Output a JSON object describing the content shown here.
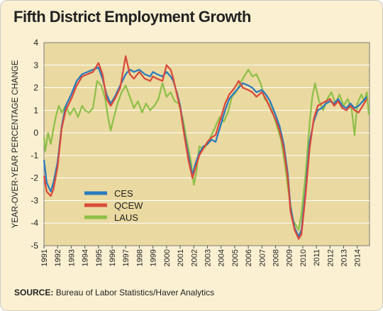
{
  "title": "Fifth District Employment Growth",
  "source": {
    "label": "SOURCE:",
    "text": "Bureau of Labor Statistics/Haver Analytics"
  },
  "chart_data": {
    "type": "line",
    "title": "Fifth District Employment Growth",
    "ylabel": "YEAR-OVER-YEAR PERCENTAGE CHANGE",
    "xlabel": "",
    "xlim": [
      1991,
      2014.9
    ],
    "ylim": [
      -5,
      4
    ],
    "yticks": [
      "4",
      "3",
      "2",
      "1",
      "0",
      "-1",
      "-2",
      "-3",
      "-4",
      "-5"
    ],
    "xticks": [
      "1991",
      "1992",
      "1993",
      "1994",
      "1995",
      "1996",
      "1997",
      "1998",
      "1999",
      "2000",
      "2001",
      "2002",
      "2003",
      "2004",
      "2005",
      "2006",
      "2007",
      "2008",
      "2009",
      "2010",
      "2011",
      "2012",
      "2013",
      "2014"
    ],
    "grid": true,
    "legend_position": "lower-left",
    "plot_background": "#ead9a0",
    "series": [
      {
        "name": "CES",
        "color": "#2b7bbd",
        "points": [
          [
            1991,
            -1.2
          ],
          [
            1991.2,
            -2.2
          ],
          [
            1991.5,
            -2.6
          ],
          [
            1991.7,
            -2.2
          ],
          [
            1992,
            -1.3
          ],
          [
            1992.3,
            0.3
          ],
          [
            1992.6,
            1.2
          ],
          [
            1993,
            1.7
          ],
          [
            1993.4,
            2.3
          ],
          [
            1993.8,
            2.6
          ],
          [
            1994.2,
            2.7
          ],
          [
            1994.6,
            2.8
          ],
          [
            1995,
            2.9
          ],
          [
            1995.3,
            2.4
          ],
          [
            1995.6,
            1.7
          ],
          [
            1995.9,
            1.3
          ],
          [
            1996.2,
            1.6
          ],
          [
            1996.6,
            2.1
          ],
          [
            1997,
            2.6
          ],
          [
            1997.3,
            2.8
          ],
          [
            1997.6,
            2.7
          ],
          [
            1998,
            2.8
          ],
          [
            1998.4,
            2.6
          ],
          [
            1998.8,
            2.5
          ],
          [
            1999,
            2.7
          ],
          [
            1999.3,
            2.6
          ],
          [
            1999.7,
            2.5
          ],
          [
            2000,
            2.7
          ],
          [
            2000.3,
            2.5
          ],
          [
            2000.5,
            2.3
          ],
          [
            2000.8,
            1.7
          ],
          [
            2001,
            1.2
          ],
          [
            2001.3,
            0
          ],
          [
            2001.6,
            -1
          ],
          [
            2001.9,
            -1.9
          ],
          [
            2002.1,
            -1.4
          ],
          [
            2002.4,
            -0.9
          ],
          [
            2002.7,
            -0.6
          ],
          [
            2003,
            -0.5
          ],
          [
            2003.3,
            -0.3
          ],
          [
            2003.6,
            -0.4
          ],
          [
            2004,
            0.4
          ],
          [
            2004.3,
            1
          ],
          [
            2004.6,
            1.5
          ],
          [
            2005,
            1.8
          ],
          [
            2005.3,
            2
          ],
          [
            2005.6,
            2.2
          ],
          [
            2006,
            2.1
          ],
          [
            2006.3,
            2
          ],
          [
            2006.6,
            1.8
          ],
          [
            2007,
            1.9
          ],
          [
            2007.3,
            1.7
          ],
          [
            2007.6,
            1.4
          ],
          [
            2008,
            0.8
          ],
          [
            2008.3,
            0.3
          ],
          [
            2008.6,
            -0.5
          ],
          [
            2008.9,
            -1.8
          ],
          [
            2009.1,
            -3.3
          ],
          [
            2009.4,
            -4.2
          ],
          [
            2009.7,
            -4.6
          ],
          [
            2009.9,
            -4.3
          ],
          [
            2010.2,
            -2.6
          ],
          [
            2010.5,
            -0.4
          ],
          [
            2010.8,
            0.5
          ],
          [
            2011.1,
            1
          ],
          [
            2011.4,
            1.1
          ],
          [
            2011.7,
            1.3
          ],
          [
            2012,
            1.4
          ],
          [
            2012.3,
            1.3
          ],
          [
            2012.6,
            1.5
          ],
          [
            2012.9,
            1.2
          ],
          [
            2013.2,
            1.1
          ],
          [
            2013.5,
            1.3
          ],
          [
            2013.8,
            1.1
          ],
          [
            2014.1,
            1.2
          ],
          [
            2014.4,
            1.4
          ],
          [
            2014.7,
            1.6
          ]
        ]
      },
      {
        "name": "QCEW",
        "color": "#d94a3b",
        "points": [
          [
            1991,
            -1.9
          ],
          [
            1991.2,
            -2.6
          ],
          [
            1991.5,
            -2.8
          ],
          [
            1991.7,
            -2.5
          ],
          [
            1992,
            -1.5
          ],
          [
            1992.3,
            0.2
          ],
          [
            1992.6,
            1
          ],
          [
            1993,
            1.5
          ],
          [
            1993.4,
            2.1
          ],
          [
            1993.8,
            2.5
          ],
          [
            1994.2,
            2.6
          ],
          [
            1994.6,
            2.7
          ],
          [
            1995,
            3.1
          ],
          [
            1995.3,
            2.6
          ],
          [
            1995.6,
            1.5
          ],
          [
            1995.9,
            1.2
          ],
          [
            1996.2,
            1.5
          ],
          [
            1996.6,
            2
          ],
          [
            1997,
            3.4
          ],
          [
            1997.3,
            2.6
          ],
          [
            1997.6,
            2.4
          ],
          [
            1998,
            2.7
          ],
          [
            1998.4,
            2.4
          ],
          [
            1998.8,
            2.3
          ],
          [
            1999,
            2.5
          ],
          [
            1999.3,
            2.4
          ],
          [
            1999.7,
            2.3
          ],
          [
            2000,
            3
          ],
          [
            2000.3,
            2.8
          ],
          [
            2000.5,
            2.4
          ],
          [
            2000.8,
            1.6
          ],
          [
            2001,
            1.1
          ],
          [
            2001.3,
            -0.1
          ],
          [
            2001.6,
            -1.2
          ],
          [
            2001.9,
            -2
          ],
          [
            2002.1,
            -1.6
          ],
          [
            2002.4,
            -1
          ],
          [
            2002.7,
            -0.7
          ],
          [
            2003,
            -0.4
          ],
          [
            2003.3,
            -0.2
          ],
          [
            2003.6,
            -0.1
          ],
          [
            2004,
            0.7
          ],
          [
            2004.3,
            1.3
          ],
          [
            2004.6,
            1.7
          ],
          [
            2005,
            2
          ],
          [
            2005.3,
            2.3
          ],
          [
            2005.6,
            2
          ],
          [
            2006,
            1.9
          ],
          [
            2006.3,
            1.8
          ],
          [
            2006.6,
            1.6
          ],
          [
            2007,
            1.8
          ],
          [
            2007.3,
            1.5
          ],
          [
            2007.6,
            1.1
          ],
          [
            2008,
            0.6
          ],
          [
            2008.3,
            0.1
          ],
          [
            2008.6,
            -0.7
          ],
          [
            2008.9,
            -2
          ],
          [
            2009.1,
            -3.5
          ],
          [
            2009.4,
            -4.3
          ],
          [
            2009.7,
            -4.7
          ],
          [
            2009.9,
            -4.5
          ],
          [
            2010.2,
            -2.8
          ],
          [
            2010.5,
            -0.7
          ],
          [
            2010.8,
            0.6
          ],
          [
            2011.1,
            1.2
          ],
          [
            2011.4,
            1.3
          ],
          [
            2011.7,
            1.4
          ],
          [
            2012,
            1.5
          ],
          [
            2012.3,
            1.2
          ],
          [
            2012.6,
            1.4
          ],
          [
            2012.9,
            1.1
          ],
          [
            2013.2,
            1
          ],
          [
            2013.5,
            1.2
          ],
          [
            2013.8,
            1
          ],
          [
            2014.1,
            0.9
          ],
          [
            2014.4,
            1.2
          ],
          [
            2014.7,
            1.5
          ]
        ]
      },
      {
        "name": "LAUS",
        "color": "#8fc04a",
        "points": [
          [
            1991,
            -0.2
          ],
          [
            1991.1,
            -0.8
          ],
          [
            1991.3,
            0
          ],
          [
            1991.5,
            -0.5
          ],
          [
            1991.7,
            0.2
          ],
          [
            1991.9,
            0.8
          ],
          [
            1992.1,
            1.2
          ],
          [
            1992.3,
            0.9
          ],
          [
            1992.6,
            1.2
          ],
          [
            1992.9,
            0.8
          ],
          [
            1993.2,
            1.1
          ],
          [
            1993.5,
            0.7
          ],
          [
            1993.8,
            1.2
          ],
          [
            1994,
            1
          ],
          [
            1994.3,
            0.9
          ],
          [
            1994.6,
            1.1
          ],
          [
            1994.9,
            2.3
          ],
          [
            1995.2,
            2.1
          ],
          [
            1995.5,
            1.5
          ],
          [
            1995.7,
            0.7
          ],
          [
            1995.9,
            0.1
          ],
          [
            1996.1,
            0.6
          ],
          [
            1996.4,
            1.3
          ],
          [
            1996.7,
            1.8
          ],
          [
            1997,
            2.1
          ],
          [
            1997.3,
            1.6
          ],
          [
            1997.6,
            1.1
          ],
          [
            1997.9,
            1.4
          ],
          [
            1998.2,
            0.9
          ],
          [
            1998.5,
            1.3
          ],
          [
            1998.8,
            1
          ],
          [
            1999.1,
            1.2
          ],
          [
            1999.4,
            1.5
          ],
          [
            1999.7,
            2.2
          ],
          [
            2000,
            1.6
          ],
          [
            2000.3,
            1.8
          ],
          [
            2000.6,
            1.4
          ],
          [
            2000.9,
            1.3
          ],
          [
            2001.2,
            0.6
          ],
          [
            2001.5,
            -0.4
          ],
          [
            2001.8,
            -1.3
          ],
          [
            2002,
            -2.3
          ],
          [
            2002.2,
            -1.7
          ],
          [
            2002.4,
            -0.6
          ],
          [
            2002.7,
            -0.7
          ],
          [
            2003,
            -0.5
          ],
          [
            2003.3,
            -0.1
          ],
          [
            2003.6,
            0.3
          ],
          [
            2003.9,
            0.7
          ],
          [
            2004.2,
            0.5
          ],
          [
            2004.5,
            0.9
          ],
          [
            2004.8,
            1.6
          ],
          [
            2005.1,
            1.8
          ],
          [
            2005.4,
            2.2
          ],
          [
            2005.7,
            2.5
          ],
          [
            2006,
            2.8
          ],
          [
            2006.3,
            2.5
          ],
          [
            2006.6,
            2.6
          ],
          [
            2006.9,
            2.2
          ],
          [
            2007.2,
            1.5
          ],
          [
            2007.5,
            1.3
          ],
          [
            2007.8,
            0.9
          ],
          [
            2008.1,
            0.3
          ],
          [
            2008.4,
            -0.3
          ],
          [
            2008.7,
            -1.4
          ],
          [
            2008.9,
            -2.4
          ],
          [
            2009.1,
            -3.2
          ],
          [
            2009.3,
            -3.9
          ],
          [
            2009.5,
            -4.1
          ],
          [
            2009.7,
            -4.3
          ],
          [
            2009.9,
            -3.6
          ],
          [
            2010.2,
            -1.9
          ],
          [
            2010.5,
            0.4
          ],
          [
            2010.7,
            1.6
          ],
          [
            2010.9,
            2.2
          ],
          [
            2011.2,
            1.4
          ],
          [
            2011.5,
            1
          ],
          [
            2011.8,
            1.5
          ],
          [
            2012.1,
            1.8
          ],
          [
            2012.4,
            1.3
          ],
          [
            2012.7,
            1.7
          ],
          [
            2013,
            1.2
          ],
          [
            2013.3,
            1.5
          ],
          [
            2013.6,
            1
          ],
          [
            2013.8,
            -0.1
          ],
          [
            2014,
            1.3
          ],
          [
            2014.3,
            1.7
          ],
          [
            2014.5,
            1.4
          ],
          [
            2014.7,
            1.8
          ],
          [
            2014.85,
            0.8
          ]
        ]
      }
    ]
  }
}
